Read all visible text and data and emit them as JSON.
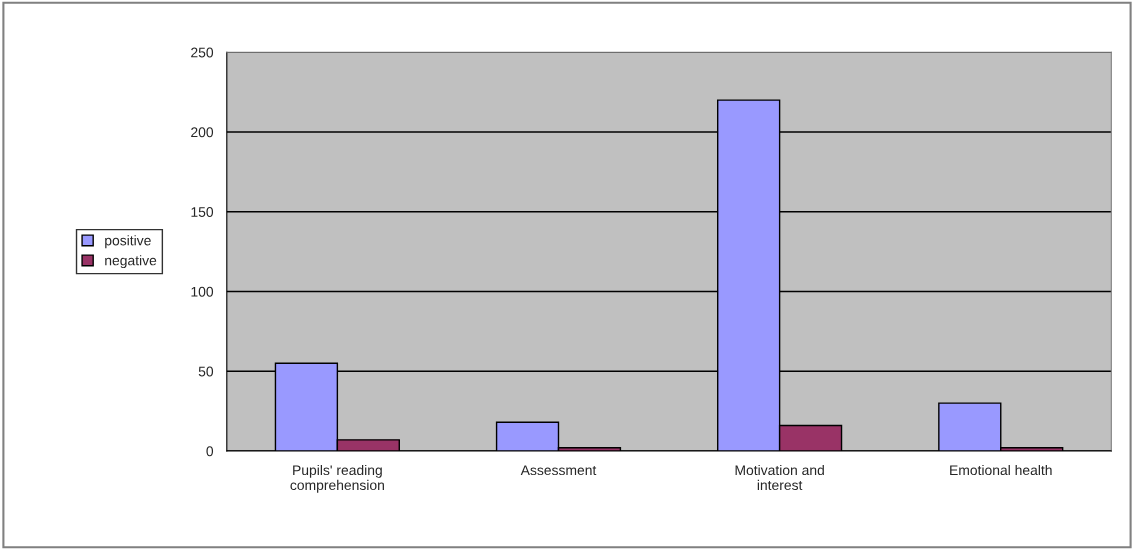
{
  "chart_data": {
    "type": "bar",
    "categories": [
      "Pupils' reading\ncomprehension",
      "Assessment",
      "Motivation and\ninterest",
      "Emotional health"
    ],
    "series": [
      {
        "name": "positive",
        "color": "#9999ff",
        "values": [
          55,
          18,
          220,
          30
        ]
      },
      {
        "name": "negative",
        "color": "#993366",
        "values": [
          7,
          2,
          16,
          2
        ]
      }
    ],
    "ylim": [
      0,
      250
    ],
    "yticks": [
      0,
      50,
      100,
      150,
      200,
      250
    ],
    "grid": "y",
    "legend": "left"
  }
}
